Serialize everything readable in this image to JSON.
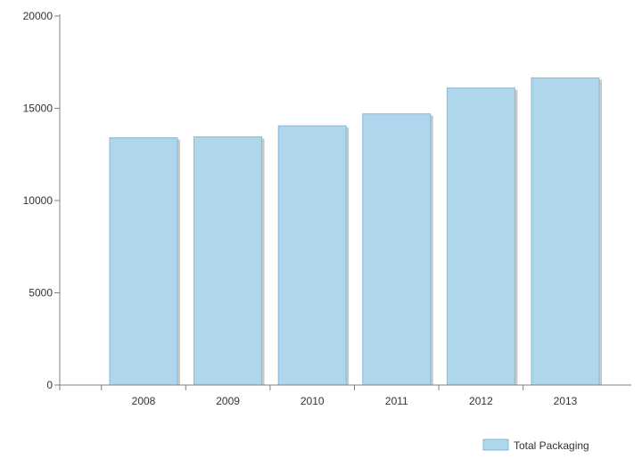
{
  "chart_data": {
    "type": "bar",
    "categories": [
      "2008",
      "2009",
      "2010",
      "2011",
      "2012",
      "2013"
    ],
    "series": [
      {
        "name": "Total Packaging",
        "values": [
          13400,
          13450,
          14050,
          14700,
          16100,
          16650
        ],
        "color": "#aed6ec",
        "edge_color": "#87b9d6"
      }
    ],
    "yticks": [
      0,
      5000,
      10000,
      15000,
      20000
    ],
    "ylim": [
      0,
      20000
    ],
    "grid": false,
    "legend_position": "bottom-right",
    "title": "",
    "xlabel": "",
    "ylabel": ""
  }
}
